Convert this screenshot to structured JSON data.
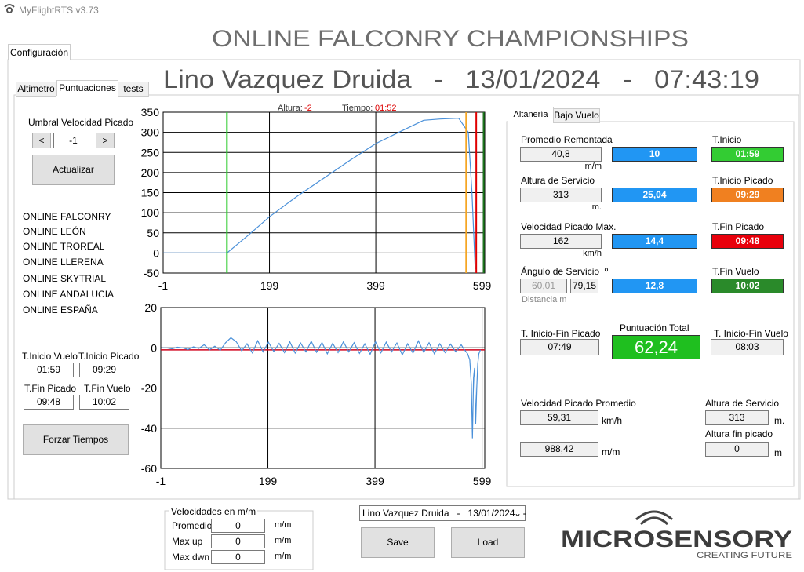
{
  "window": {
    "title": "MyFlightRTS v3.73"
  },
  "tabs": [
    "Configuración"
  ],
  "header": {
    "title": "ONLINE FALCONRY CHAMPIONSHIPS",
    "subtitle": "Lino Vazquez Druida   -   13/01/2024   -   07:43:19"
  },
  "inner_tabs": [
    "Altimetro",
    "Puntuaciones",
    "tests"
  ],
  "left_panel": {
    "threshold_label": "Umbral Velocidad Picado",
    "prev": "<",
    "threshold": "-1",
    "next": ">",
    "update": "Actualizar",
    "teams": [
      "ONLINE FALCONRY",
      "ONLINE LEÓN",
      "ONLINE TROREAL",
      "ONLINE LLERENA",
      "ONLINE SKYTRIAL",
      "ONLINE ANDALUCIA",
      "ONLINE ESPAÑA"
    ],
    "times": [
      {
        "label": "T.Inicio Vuelo",
        "value": "01:59"
      },
      {
        "label": "T.Inicio Picado",
        "value": "09:29"
      },
      {
        "label": "T.Fin Picado",
        "value": "09:48"
      },
      {
        "label": "T.Fin Vuelo",
        "value": "10:02"
      }
    ],
    "force": "Forzar Tiempos"
  },
  "charts": [
    {
      "type": "line",
      "readout": {
        "altitude_label": "Altura:",
        "altitude": "-2",
        "time_label": "Tiempo:",
        "time": "01:52"
      },
      "x": [
        -1,
        119,
        160,
        199,
        250,
        300,
        350,
        399,
        450,
        489,
        520,
        555,
        573,
        580,
        586
      ],
      "series": [
        {
          "color": "#4a90d9",
          "values": [
            0,
            0,
            45,
            90,
            140,
            185,
            230,
            272,
            305,
            330,
            333,
            335,
            300,
            150,
            -40
          ]
        }
      ],
      "xlim": [
        -1,
        604
      ],
      "xticks": [
        -1,
        199,
        399,
        599
      ],
      "ylim": [
        -50,
        350
      ],
      "yticks": [
        350,
        300,
        250,
        200,
        150,
        100,
        50,
        0,
        -50
      ],
      "grid": true,
      "vlines": [
        {
          "value": 119,
          "color": "#2ecc2e"
        },
        {
          "value": 569,
          "color": "#f5a623"
        },
        {
          "value": 588,
          "color": "#e00000"
        },
        {
          "value": 602,
          "color": "#1f7a1f"
        }
      ]
    },
    {
      "type": "line",
      "x": [
        0,
        10,
        20,
        30,
        40,
        50,
        60,
        70,
        80,
        90,
        100,
        110,
        120,
        130,
        140,
        150,
        160,
        170,
        180,
        190,
        200,
        210,
        220,
        230,
        240,
        250,
        260,
        270,
        280,
        290,
        300,
        310,
        320,
        330,
        340,
        350,
        360,
        370,
        380,
        390,
        400,
        410,
        420,
        430,
        440,
        450,
        460,
        470,
        480,
        490,
        500,
        510,
        520,
        530,
        540,
        550,
        560,
        566,
        572,
        576,
        579,
        581,
        583,
        585,
        587,
        589,
        591,
        593,
        596
      ],
      "series": [
        {
          "color": "#4a90d9",
          "values": [
            0,
            0,
            -0.5,
            0.3,
            0,
            -0.8,
            0.5,
            -0.3,
            1.5,
            -1,
            0.8,
            -1.2,
            2.5,
            5,
            3,
            -1.5,
            2,
            -2.5,
            3.5,
            -2,
            2.8,
            -1.8,
            2.2,
            -2.4,
            3,
            -2.6,
            2.4,
            -2,
            3.2,
            -2.2,
            2.6,
            -3,
            2.2,
            -2.4,
            3,
            -2,
            2.5,
            -2.8,
            2,
            -3.2,
            3,
            -2.5,
            2.8,
            -2,
            2.4,
            -3.5,
            2,
            -2.6,
            3.4,
            -2.2,
            2.5,
            -3,
            2,
            -2.4,
            1.8,
            -2,
            1.5,
            -1,
            -3,
            -6,
            -18,
            -45,
            -15,
            -10,
            -38,
            -20,
            -8,
            -3,
            -1
          ]
        }
      ],
      "xlim": [
        -1,
        604
      ],
      "xticks": [
        -1,
        199,
        399,
        599
      ],
      "ylim": [
        -60,
        20
      ],
      "yticks": [
        20,
        0,
        -20,
        -40,
        -60
      ],
      "grid": true,
      "hlines": [
        {
          "value": -1,
          "color": "#d0021b"
        }
      ]
    }
  ],
  "right_panel": {
    "tabs": [
      "Altanería",
      "Bajo Vuelo"
    ],
    "rows": [
      {
        "label": "Promedio Remontada",
        "value": "40,8",
        "unit": "m/m",
        "score": "10",
        "time_label": "T.Inicio",
        "time": "01:59",
        "color": "#33cc33"
      },
      {
        "label": "Altura de Servicio",
        "value": "313",
        "unit": "m.",
        "score": "25,04",
        "time_label": "T.Inicio Picado",
        "time": "09:29",
        "color": "#f08020"
      },
      {
        "label": "Velocidad Picado Max.",
        "value": "162",
        "unit": "km/h",
        "score": "14,4",
        "time_label": "T.Fin Picado",
        "time": "09:48",
        "color": "#e8000b"
      },
      {
        "label": "Ángulo de Servicio  º",
        "value": "60,01",
        "value2": "79,15",
        "unit": "Distancia m",
        "score": "12,8",
        "time_label": "T.Fin Vuelo",
        "time": "10:02",
        "color": "#2a8a2a"
      }
    ],
    "dive_range": {
      "label": "T. Inicio-Fin Picado",
      "value": "07:49"
    },
    "total": {
      "label": "Puntuación Total",
      "value": "62,24"
    },
    "flight_range": {
      "label": "T. Inicio-Fin Vuelo",
      "value": "08:03"
    },
    "avg_dive": {
      "label": "Velocidad Picado Promedio",
      "value": "59,31",
      "unit": "km/h"
    },
    "extra": {
      "value": "988,42",
      "unit": "m/m"
    },
    "service_alt": {
      "label": "Altura de Servicio",
      "value": "313",
      "unit": "m."
    },
    "end_alt": {
      "label": "Altura fin picado",
      "value": "0",
      "unit": "m"
    }
  },
  "velocities": {
    "title": "Velocidades en m/m",
    "rows": [
      {
        "label": "Promedio",
        "value": "0",
        "unit": "m/m"
      },
      {
        "label": "Max up",
        "value": "0",
        "unit": "m/m"
      },
      {
        "label": "Max dwn",
        "value": "0",
        "unit": "m/m"
      }
    ]
  },
  "session_select": "Lino Vazquez Druida   -   13/01/2024   -",
  "save": "Save",
  "load": "Load",
  "logo": {
    "name": "MICROSENSORY",
    "tagline": "CREATING FUTURE"
  }
}
